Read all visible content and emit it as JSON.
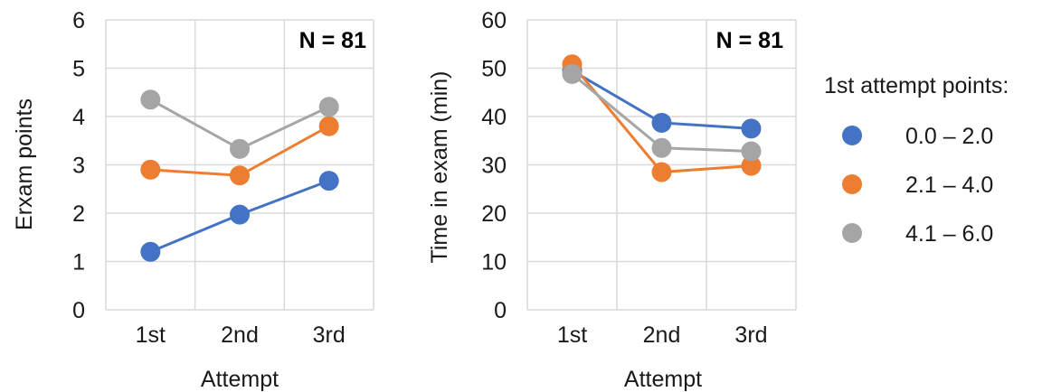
{
  "chart_data": [
    {
      "type": "line",
      "categories": [
        "1st",
        "2nd",
        "3rd"
      ],
      "series": [
        {
          "name": "0.0 – 2.0",
          "color": "#4472C4",
          "values": [
            1.2,
            1.97,
            2.67
          ]
        },
        {
          "name": "2.1 – 4.0",
          "color": "#ED7D31",
          "values": [
            2.9,
            2.78,
            3.8
          ]
        },
        {
          "name": "4.1 – 6.0",
          "color": "#A5A5A5",
          "values": [
            4.35,
            3.33,
            4.2
          ]
        }
      ],
      "xlabel": "Attempt",
      "ylabel": "Erxam points",
      "ylim": [
        0,
        6
      ],
      "yticks": [
        "0",
        "1",
        "2",
        "3",
        "4",
        "5",
        "6"
      ],
      "annotation": "N = 81",
      "grid": true
    },
    {
      "type": "line",
      "categories": [
        "1st",
        "2nd",
        "3rd"
      ],
      "series": [
        {
          "name": "0.0 – 2.0",
          "color": "#4472C4",
          "values": [
            49.5,
            38.7,
            37.5
          ]
        },
        {
          "name": "2.1 – 4.0",
          "color": "#ED7D31",
          "values": [
            50.8,
            28.5,
            29.8
          ]
        },
        {
          "name": "4.1 – 6.0",
          "color": "#A5A5A5",
          "values": [
            48.8,
            33.5,
            32.8
          ]
        }
      ],
      "xlabel": "Attempt",
      "ylabel": "Time in exam (min)",
      "ylim": [
        0,
        60
      ],
      "yticks": [
        "0",
        "10",
        "20",
        "30",
        "40",
        "50",
        "60"
      ],
      "annotation": "N = 81",
      "grid": true
    }
  ],
  "legend": {
    "title": "1st attempt points:",
    "placement": "right",
    "entries": [
      "0.0 – 2.0",
      "2.1 – 4.0",
      "4.1 – 6.0"
    ]
  }
}
